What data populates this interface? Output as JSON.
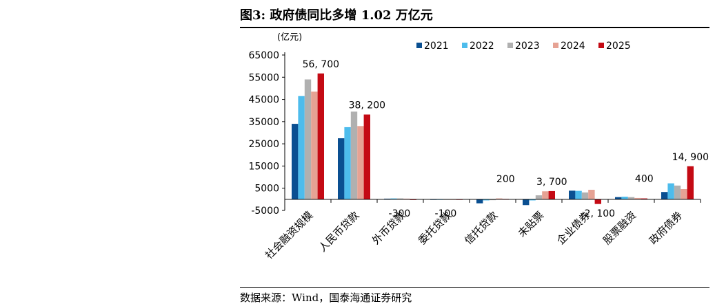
{
  "title": "图3: 政府债同比多增 1.02 万亿元",
  "source": "数据来源：Wind，国泰海通证券研究",
  "chart_data": {
    "type": "bar",
    "unit_label": "(亿元)",
    "ylim": [
      -5000,
      65000
    ],
    "yticks": [
      -5000,
      5000,
      15000,
      25000,
      35000,
      45000,
      55000,
      65000
    ],
    "categories": [
      "社会融资规模",
      "人民币贷款",
      "外币贷款",
      "委托贷款",
      "信托贷款",
      "未贴票",
      "企业债券",
      "股票融资",
      "政府债券"
    ],
    "series": [
      {
        "name": "2021",
        "color": "#0a4f91",
        "values": [
          34000,
          27500,
          300,
          -200,
          -1800,
          -2600,
          3900,
          1000,
          3300
        ]
      },
      {
        "name": "2022",
        "color": "#4dbcec",
        "values": [
          46500,
          32500,
          400,
          -100,
          -500,
          -500,
          3800,
          1200,
          7200
        ]
      },
      {
        "name": "2023",
        "color": "#b0b0b0",
        "values": [
          54000,
          39500,
          400,
          -100,
          -400,
          1800,
          3100,
          1000,
          6200
        ]
      },
      {
        "name": "2024",
        "color": "#e6a294",
        "values": [
          48500,
          33000,
          300,
          -150,
          400,
          3600,
          4300,
          600,
          4600
        ]
      },
      {
        "name": "2025",
        "color": "#c40a14",
        "values": [
          56700,
          38200,
          -300,
          -100,
          200,
          3700,
          -2100,
          400,
          14900
        ]
      }
    ],
    "labels": [
      "56, 700",
      "38, 200",
      "-300",
      "-100",
      "200",
      "3, 700",
      "-2, 100",
      "400",
      "14, 900"
    ],
    "legend_position": "top-right"
  }
}
